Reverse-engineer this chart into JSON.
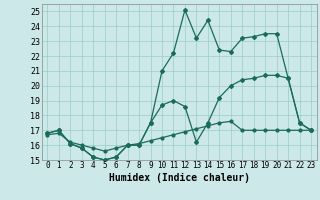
{
  "xlabel": "Humidex (Indice chaleur)",
  "bg_color": "#cce8e8",
  "grid_color": "#99cccc",
  "line_color": "#1a6b5a",
  "xlim": [
    -0.5,
    23.5
  ],
  "ylim": [
    15,
    25.5
  ],
  "xticks": [
    0,
    1,
    2,
    3,
    4,
    5,
    6,
    7,
    8,
    9,
    10,
    11,
    12,
    13,
    14,
    15,
    16,
    17,
    18,
    19,
    20,
    21,
    22,
    23
  ],
  "yticks": [
    15,
    16,
    17,
    18,
    19,
    20,
    21,
    22,
    23,
    24,
    25
  ],
  "line1_x": [
    0,
    1,
    2,
    3,
    4,
    5,
    6,
    7,
    8,
    9,
    10,
    11,
    12,
    13,
    14,
    15,
    16,
    17,
    18,
    19,
    20,
    21,
    22,
    23
  ],
  "line1_y": [
    16.8,
    17.0,
    16.1,
    15.8,
    15.2,
    15.0,
    15.2,
    16.0,
    16.0,
    17.5,
    18.7,
    19.0,
    18.6,
    16.2,
    17.5,
    19.2,
    20.0,
    20.4,
    20.5,
    20.7,
    20.7,
    20.5,
    17.5,
    17.0
  ],
  "line2_x": [
    0,
    1,
    2,
    3,
    4,
    5,
    6,
    7,
    8,
    9,
    10,
    11,
    12,
    13,
    14,
    15,
    16,
    17,
    18,
    19,
    20,
    21,
    22,
    23
  ],
  "line2_y": [
    16.8,
    17.0,
    16.1,
    15.8,
    15.2,
    15.0,
    15.2,
    16.0,
    16.0,
    17.5,
    21.0,
    22.2,
    25.1,
    23.2,
    24.4,
    22.4,
    22.3,
    23.2,
    23.3,
    23.5,
    23.5,
    20.5,
    17.5,
    17.0
  ],
  "line3_x": [
    0,
    1,
    2,
    3,
    4,
    5,
    6,
    7,
    8,
    9,
    10,
    11,
    12,
    13,
    14,
    15,
    16,
    17,
    18,
    19,
    20,
    21,
    22,
    23
  ],
  "line3_y": [
    16.7,
    16.8,
    16.2,
    16.0,
    15.8,
    15.6,
    15.8,
    16.0,
    16.1,
    16.3,
    16.5,
    16.7,
    16.9,
    17.1,
    17.3,
    17.5,
    17.6,
    17.0,
    17.0,
    17.0,
    17.0,
    17.0,
    17.0,
    17.0
  ]
}
